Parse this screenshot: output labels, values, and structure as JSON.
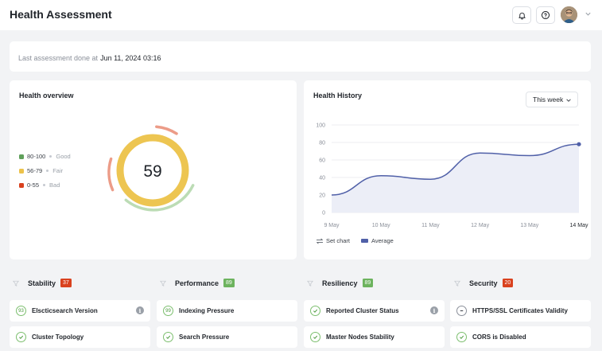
{
  "header": {
    "title": "Health Assessment",
    "icons": [
      "bell-icon",
      "help-icon",
      "avatar",
      "chevron-down-icon"
    ]
  },
  "last_assessment": {
    "label": "Last assessment done at",
    "value": "Jun 11, 2024 03:16"
  },
  "health_overview": {
    "title": "Health overview",
    "score": "59",
    "score_value": 59,
    "legend": [
      {
        "range": "80-100",
        "label": "Good",
        "color": "#5fa05a"
      },
      {
        "range": "56-79",
        "label": "Fair",
        "color": "#ecc24a"
      },
      {
        "range": "0-55",
        "label": "Bad",
        "color": "#d9411e"
      }
    ]
  },
  "health_history": {
    "title": "Health History",
    "period": "This week",
    "set_chart_label": "Set chart",
    "chart_data": {
      "type": "area",
      "categories": [
        "9 May",
        "10 May",
        "11 May",
        "12 May",
        "13 May",
        "14 May"
      ],
      "series": [
        {
          "name": "Average",
          "values": [
            20,
            42,
            38,
            68,
            65,
            78
          ]
        }
      ],
      "y_ticks": [
        "100",
        "80",
        "60",
        "40",
        "20",
        "0"
      ],
      "ylim": [
        0,
        100
      ],
      "grid": true,
      "legend": "bottom-left",
      "color": "#5060a8"
    }
  },
  "categories": [
    {
      "title": "Stability",
      "count": "37",
      "badge_color": "#d9411e",
      "items": [
        {
          "label": "Elscticsearch Version",
          "indicator": "93",
          "info": true
        },
        {
          "label": "Cluster Topology",
          "indicator": "check",
          "info": false
        }
      ]
    },
    {
      "title": "Performance",
      "count": "89",
      "badge_color": "#6db35e",
      "items": [
        {
          "label": "Indexing Pressure",
          "indicator": "99",
          "info": false
        },
        {
          "label": "Search Pressure",
          "indicator": "check",
          "info": false
        }
      ]
    },
    {
      "title": "Resiliency",
      "count": "89",
      "badge_color": "#6db35e",
      "items": [
        {
          "label": "Reported Cluster Status",
          "indicator": "check",
          "info": true
        },
        {
          "label": "Master Nodes Stability",
          "indicator": "check",
          "info": false
        }
      ]
    },
    {
      "title": "Security",
      "count": "20",
      "badge_color": "#d9411e",
      "items": [
        {
          "label": "HTTPS/SSL Certificates Validity",
          "indicator": "dash",
          "info": false
        },
        {
          "label": "CORS is Disabled",
          "indicator": "check",
          "info": false
        }
      ]
    }
  ]
}
